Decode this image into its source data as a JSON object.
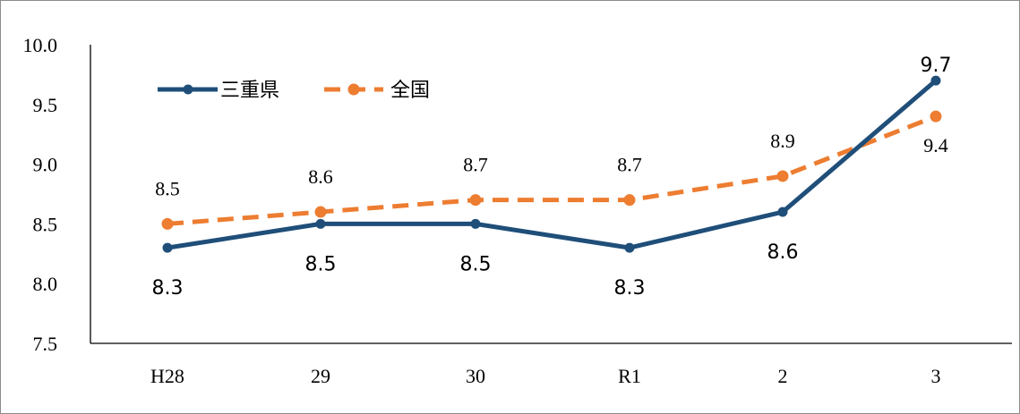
{
  "chart_data": {
    "type": "line",
    "categories": [
      "H28",
      "29",
      "30",
      "R1",
      "2",
      "3"
    ],
    "series": [
      {
        "name": "三重県",
        "values": [
          8.3,
          8.5,
          8.5,
          8.3,
          8.6,
          9.7
        ],
        "color": "#1f4e79",
        "style": "solid"
      },
      {
        "name": "全国",
        "values": [
          8.5,
          8.6,
          8.7,
          8.7,
          8.9,
          9.4
        ],
        "color": "#ed7d31",
        "style": "dashed"
      }
    ],
    "ylim": [
      7.5,
      10.0
    ],
    "yticks": [
      "7.5",
      "8.0",
      "8.5",
      "9.0",
      "9.5",
      "10.0"
    ],
    "data_labels": {
      "三重県": [
        "8.3",
        "8.5",
        "8.5",
        "8.3",
        "8.6",
        "9.7"
      ],
      "全国": [
        "8.5",
        "8.6",
        "8.7",
        "8.7",
        "8.9",
        "9.4"
      ]
    },
    "legend": {
      "position": "top-left"
    },
    "grid": false
  }
}
